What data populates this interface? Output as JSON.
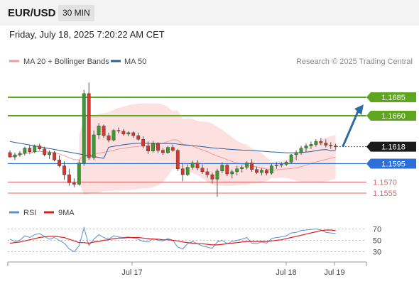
{
  "header": {
    "pair": "EUR/USD",
    "timeframe": "30 MIN",
    "datetime": "Friday, July 18, 2025 7:20:22 AM CET"
  },
  "legend": {
    "ma20": {
      "label": "MA 20 + Bollinger Bands",
      "color": "#f29a9a"
    },
    "ma50": {
      "label": "MA 50",
      "color": "#2c5d9c"
    },
    "credit": "Research © 2025 Trading Central"
  },
  "colors": {
    "up": "#3a9a2e",
    "down": "#d9352a",
    "green_level": "#5ea61e",
    "blue_level": "#2c6fd6",
    "red_level": "#e06060",
    "last_price": "#1a1a1a",
    "band_fill": "#fde0e0",
    "arrow": "#2d6ba3",
    "rsi": "#5b8fd6",
    "rsi_ma": "#dd1d1d"
  },
  "chart_data": [
    {
      "type": "candlestick",
      "title": "",
      "ylim": [
        1.5525,
        1.5895
      ],
      "x_labels": [
        "Jul 17",
        "Jul 18",
        "Jul 19"
      ],
      "levels": [
        {
          "value": 1.1685,
          "label": "1.1685",
          "kind": "resistance"
        },
        {
          "value": 1.166,
          "label": "1.1660",
          "kind": "resistance"
        },
        {
          "value": 1.1618,
          "label": "1.1618",
          "kind": "last"
        },
        {
          "value": 1.1595,
          "label": "1.1595",
          "kind": "pivot"
        },
        {
          "value": 1.157,
          "label": "1.1570",
          "kind": "support"
        },
        {
          "value": 1.1555,
          "label": "1.1555",
          "kind": "support"
        }
      ],
      "projection": {
        "from": 1.1618,
        "to": 1.1655
      },
      "candles": [
        [
          1.161,
          1.1613,
          1.1603,
          1.1604
        ],
        [
          1.1604,
          1.161,
          1.16,
          1.1607
        ],
        [
          1.1607,
          1.1612,
          1.1604,
          1.1609
        ],
        [
          1.1609,
          1.1618,
          1.1606,
          1.1616
        ],
        [
          1.1616,
          1.162,
          1.1608,
          1.1611
        ],
        [
          1.1611,
          1.1621,
          1.1609,
          1.1619
        ],
        [
          1.1619,
          1.1622,
          1.1613,
          1.1615
        ],
        [
          1.1615,
          1.1618,
          1.1605,
          1.1607
        ],
        [
          1.1607,
          1.1613,
          1.1601,
          1.161
        ],
        [
          1.161,
          1.1612,
          1.1598,
          1.16
        ],
        [
          1.16,
          1.1606,
          1.159,
          1.1592
        ],
        [
          1.1592,
          1.1598,
          1.1573,
          1.158
        ],
        [
          1.158,
          1.1588,
          1.1565,
          1.1569
        ],
        [
          1.1569,
          1.1575,
          1.1563,
          1.1567
        ],
        [
          1.1567,
          1.16,
          1.1565,
          1.1596
        ],
        [
          1.1596,
          1.1695,
          1.1592,
          1.169
        ],
        [
          1.169,
          1.1705,
          1.16,
          1.1603
        ],
        [
          1.1603,
          1.164,
          1.16,
          1.1634
        ],
        [
          1.1634,
          1.165,
          1.1628,
          1.1646
        ],
        [
          1.1646,
          1.1648,
          1.163,
          1.1633
        ],
        [
          1.1633,
          1.1637,
          1.1624,
          1.1627
        ],
        [
          1.1627,
          1.1642,
          1.1625,
          1.164
        ],
        [
          1.164,
          1.1644,
          1.1636,
          1.1639
        ],
        [
          1.1639,
          1.1642,
          1.1633,
          1.1635
        ],
        [
          1.1635,
          1.1639,
          1.1632,
          1.1637
        ],
        [
          1.1637,
          1.1639,
          1.163,
          1.1633
        ],
        [
          1.1633,
          1.1637,
          1.1626,
          1.1628
        ],
        [
          1.1628,
          1.1632,
          1.1616,
          1.1619
        ],
        [
          1.1619,
          1.1625,
          1.1608,
          1.1612
        ],
        [
          1.1612,
          1.1626,
          1.161,
          1.1622
        ],
        [
          1.1622,
          1.1624,
          1.1609,
          1.1613
        ],
        [
          1.1613,
          1.1616,
          1.1607,
          1.161
        ],
        [
          1.161,
          1.1619,
          1.1608,
          1.1617
        ],
        [
          1.1617,
          1.1621,
          1.1611,
          1.1613
        ],
        [
          1.1613,
          1.1615,
          1.1585,
          1.1588
        ],
        [
          1.1588,
          1.1596,
          1.1571,
          1.158
        ],
        [
          1.158,
          1.1594,
          1.1578,
          1.159
        ],
        [
          1.159,
          1.1599,
          1.1587,
          1.1596
        ],
        [
          1.1596,
          1.16,
          1.1586,
          1.1589
        ],
        [
          1.1589,
          1.1594,
          1.1581,
          1.1584
        ],
        [
          1.1584,
          1.1589,
          1.1576,
          1.158
        ],
        [
          1.158,
          1.1583,
          1.1568,
          1.1574
        ],
        [
          1.1574,
          1.1588,
          1.155,
          1.1585
        ],
        [
          1.1585,
          1.1597,
          1.1582,
          1.1593
        ],
        [
          1.1593,
          1.1595,
          1.1578,
          1.1581
        ],
        [
          1.1581,
          1.1587,
          1.1575,
          1.1584
        ],
        [
          1.1584,
          1.1592,
          1.1579,
          1.1588
        ],
        [
          1.1588,
          1.1593,
          1.1583,
          1.159
        ],
        [
          1.159,
          1.1598,
          1.1587,
          1.1596
        ],
        [
          1.1596,
          1.1601,
          1.1584,
          1.1587
        ],
        [
          1.1587,
          1.1591,
          1.1581,
          1.1583
        ],
        [
          1.1583,
          1.1589,
          1.1579,
          1.1586
        ],
        [
          1.1586,
          1.1588,
          1.1579,
          1.1582
        ],
        [
          1.1582,
          1.1595,
          1.158,
          1.1592
        ],
        [
          1.1592,
          1.1597,
          1.1588,
          1.1593
        ],
        [
          1.1593,
          1.1597,
          1.159,
          1.1594
        ],
        [
          1.1594,
          1.1599,
          1.1592,
          1.1597
        ],
        [
          1.1597,
          1.1608,
          1.1595,
          1.1607
        ],
        [
          1.1607,
          1.1613,
          1.16,
          1.161
        ],
        [
          1.161,
          1.1619,
          1.1607,
          1.1616
        ],
        [
          1.1616,
          1.1622,
          1.1611,
          1.1619
        ],
        [
          1.1619,
          1.1625,
          1.1615,
          1.1621
        ],
        [
          1.1621,
          1.1628,
          1.1618,
          1.1625
        ],
        [
          1.1625,
          1.163,
          1.162,
          1.1623
        ],
        [
          1.1623,
          1.1628,
          1.1617,
          1.162
        ],
        [
          1.162,
          1.1624,
          1.1615,
          1.1619
        ],
        [
          1.1619,
          1.1622,
          1.1614,
          1.1618
        ]
      ]
    },
    {
      "type": "line",
      "title": "",
      "series": [
        {
          "name": "RSI",
          "values": [
            52,
            48,
            50,
            58,
            55,
            60,
            62,
            57,
            52,
            55,
            50,
            45,
            35,
            30,
            40,
            72,
            41,
            52,
            60,
            55,
            52,
            58,
            56,
            55,
            56,
            54,
            52,
            48,
            47,
            53,
            50,
            49,
            53,
            50,
            38,
            35,
            44,
            48,
            44,
            40,
            38,
            36,
            47,
            50,
            44,
            48,
            50,
            52,
            55,
            45,
            44,
            47,
            45,
            53,
            55,
            56,
            58,
            63,
            64,
            67,
            68,
            69,
            70,
            68,
            64,
            63,
            62
          ]
        },
        {
          "name": "9MA",
          "values": [
            45,
            46,
            47,
            49,
            51,
            53,
            55,
            56,
            57,
            57,
            56,
            55,
            52,
            49,
            46,
            46,
            45,
            47,
            48,
            50,
            51,
            53,
            54,
            54,
            55,
            55,
            55,
            54,
            53,
            52,
            52,
            51,
            51,
            50,
            49,
            47,
            46,
            45,
            44,
            44,
            43,
            42,
            42,
            43,
            44,
            45,
            46,
            47,
            48,
            48,
            48,
            48,
            48,
            49,
            50,
            51,
            53,
            55,
            57,
            59,
            61,
            63,
            65,
            67,
            68,
            68,
            67
          ]
        }
      ],
      "y_ticks": [
        70,
        50,
        30
      ],
      "ylim": [
        17,
        83
      ]
    }
  ]
}
